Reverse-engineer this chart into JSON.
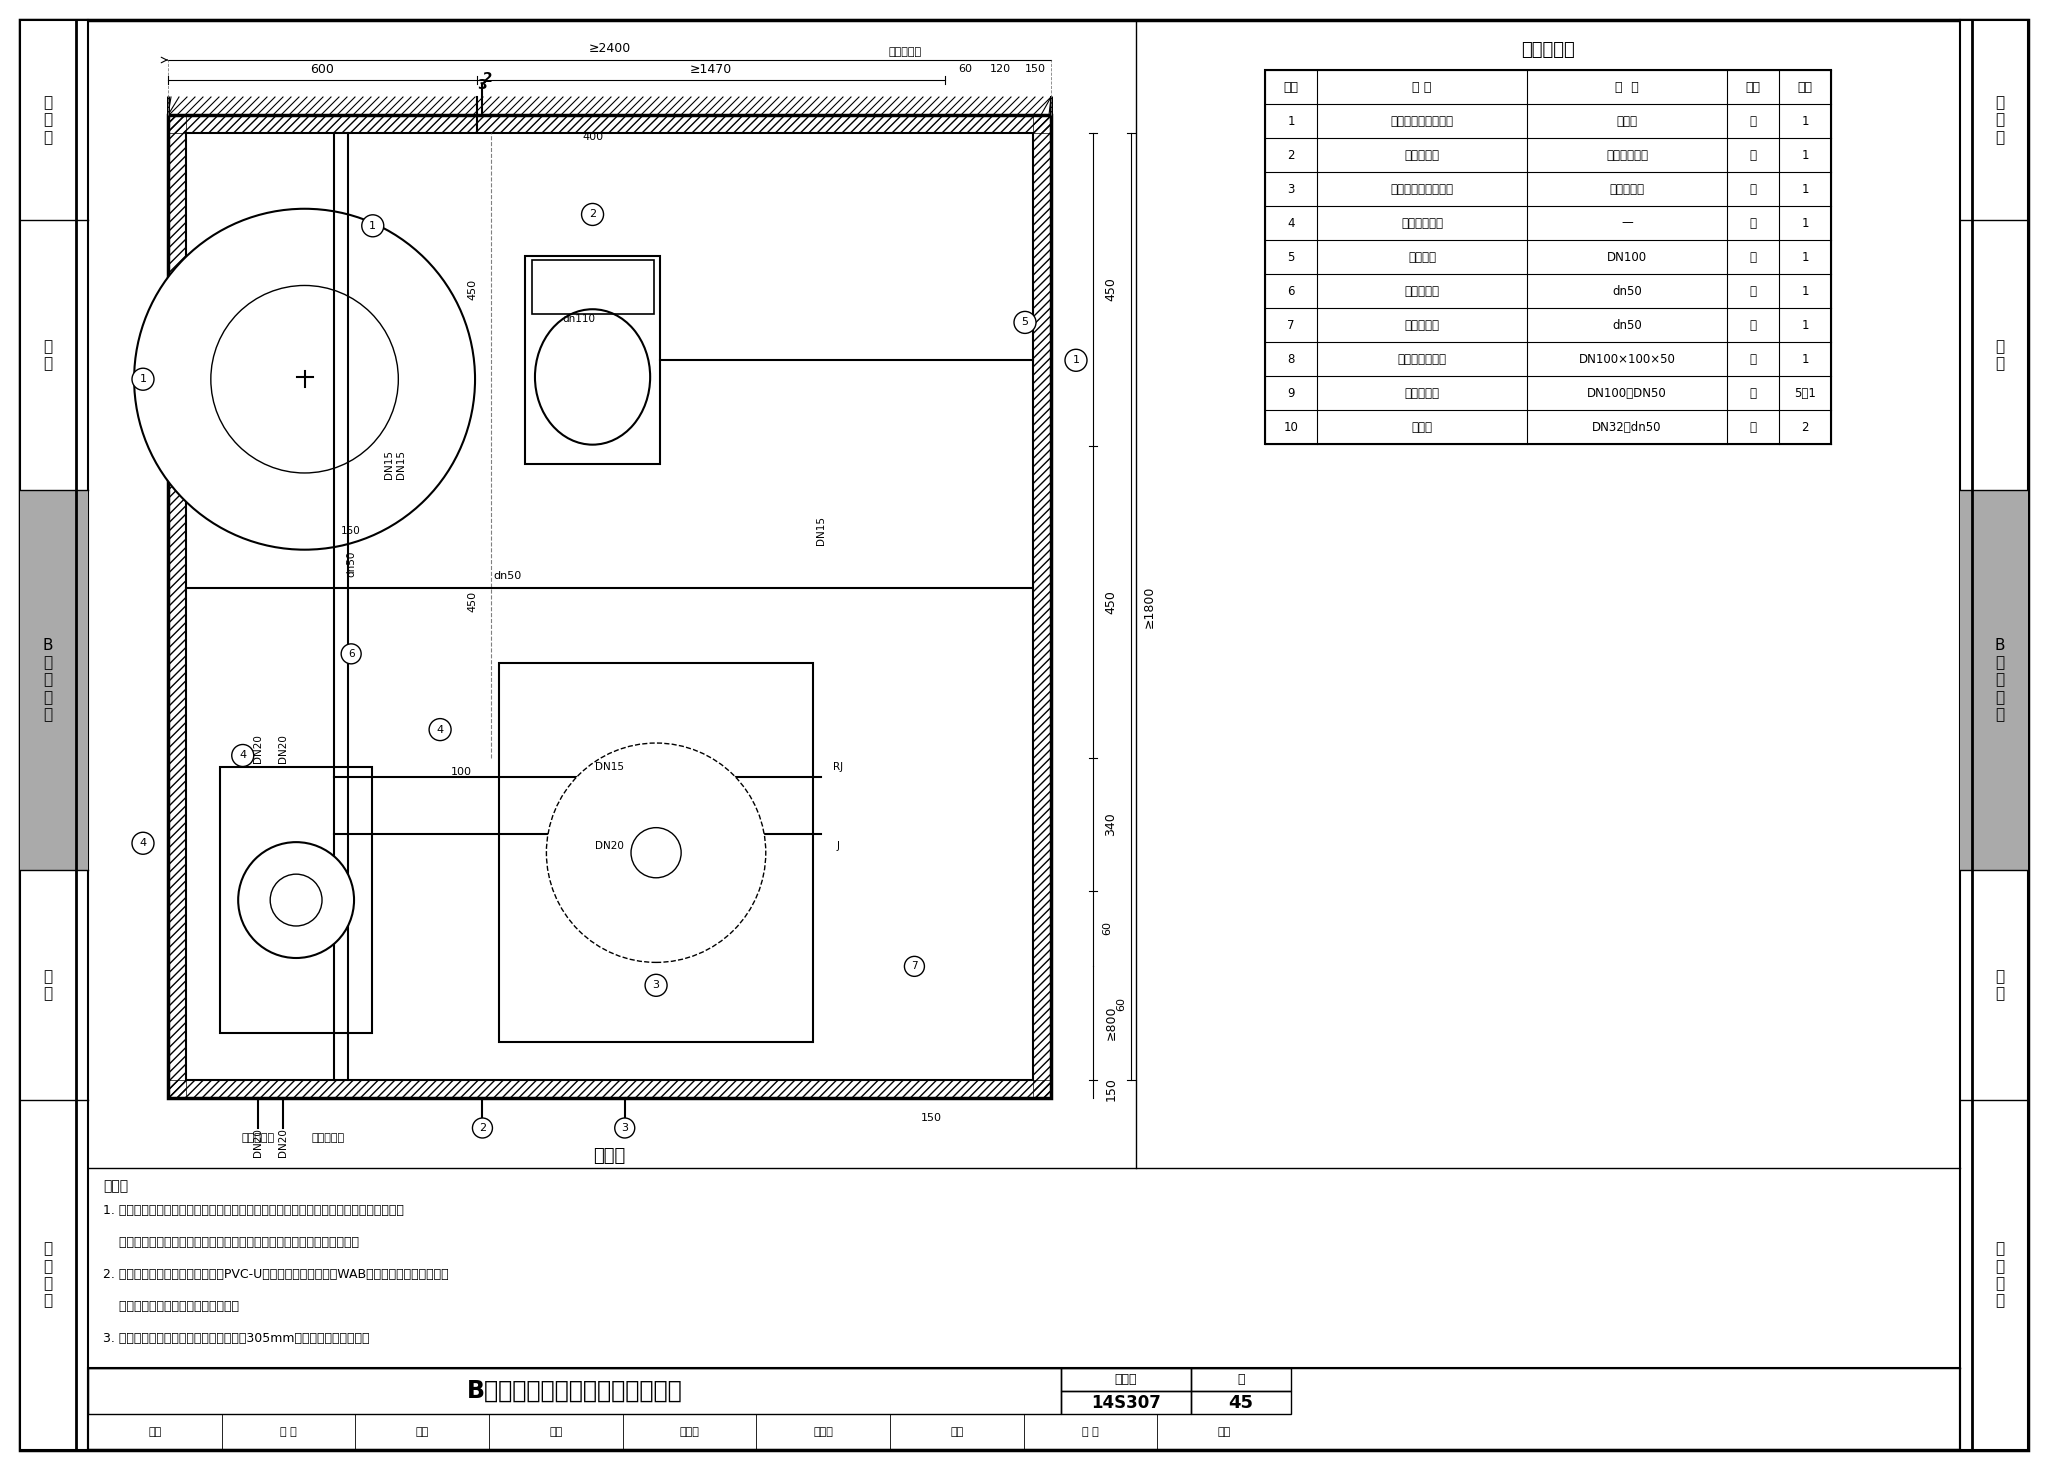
{
  "page_bg": "#ffffff",
  "main_title_text": "B型卫生间给排水管道安装方案五",
  "drawing_number": "14S307",
  "page_number": "45",
  "atlas_label": "图集号",
  "page_label": "页",
  "table_title": "主要设备表",
  "table_headers": [
    "编号",
    "名 称",
    "规  格",
    "单位",
    "数量"
  ],
  "table_rows": [
    [
      "1",
      "单柄混合水嘴洗脸盆",
      "台上式",
      "套",
      "1"
    ],
    [
      "2",
      "坐式大便器",
      "分体式下排水",
      "套",
      "1"
    ],
    [
      "3",
      "单柄淋浴水嘴淋浴房",
      "全钢化玻璃",
      "套",
      "1"
    ],
    [
      "4",
      "全自动洗衣机",
      "—",
      "套",
      "1"
    ],
    [
      "5",
      "污水立管",
      "DN100",
      "根",
      "1"
    ],
    [
      "6",
      "有水封地漏",
      "dn50",
      "个",
      "1"
    ],
    [
      "7",
      "直通式地漏",
      "dn50",
      "个",
      "1"
    ],
    [
      "8",
      "导流右直角四通",
      "DN100×100×50",
      "个",
      "1"
    ],
    [
      "9",
      "不锈钢卡箍",
      "DN100、DN50",
      "套",
      "5、1"
    ],
    [
      "10",
      "存水弯",
      "DN32、dn50",
      "个",
      "2"
    ]
  ],
  "plan_title": "平面图",
  "left_tabs": [
    "总说明",
    "厨房",
    "B型卫生间",
    "阳台",
    "节点详图"
  ],
  "right_tabs": [
    "总说明",
    "厨房",
    "B型卫生间",
    "阳台",
    "节点详图"
  ],
  "left_tabs_display": [
    "总\n说\n明",
    "厨\n房",
    "B\n型\n卫\n生\n间",
    "阳\n台",
    "节\n点\n详\n图"
  ],
  "right_tabs_display": [
    "总\n说\n明",
    "厨\n房",
    "B\n型\n卫\n生\n间",
    "阳\n台",
    "节\n点\n详\n图"
  ],
  "tab_gray_index": 2,
  "notes_title": "说明：",
  "notes": [
    "1. 本图为有集中热水供应的卫生间设计，给水管采用枝状供水，敷设在吊顶内时，用实线",
    "    表示；如敷设在地坪装饰面层以下的水泥砂浆结合层内时，用虚线表示。",
    "2. 本图排水支管采用硬聚氯乙烯（PVC-U）排水管，排水立管按WAB特殊单立管柔性接口机制",
    "    铸铁排水管，不锈钢卡箍连接绘制。",
    "3. 本卫生间平面布置同时也适用于坑距为305mm等尺寸的坐式大便器。"
  ],
  "sig_row1": [
    "审核",
    "张 淼",
    "张栋",
    "校对",
    "张文华",
    "沈文早",
    "设计",
    "万 水",
    "万水",
    "页",
    "45"
  ],
  "gray_color": "#aaaaaa",
  "hatch_color": "#888888",
  "wall_thick": 18
}
